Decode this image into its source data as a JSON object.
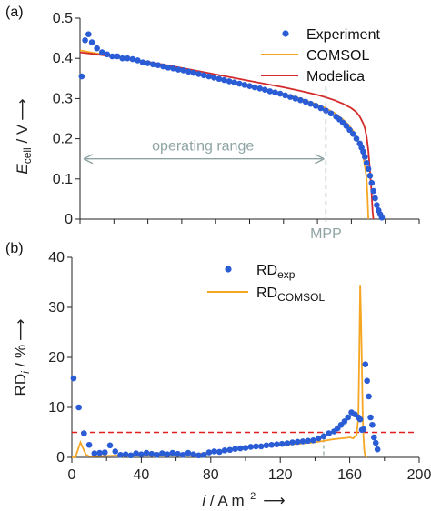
{
  "colors": {
    "experiment": "#2a5cd6",
    "comsol": "#f5a623",
    "modelica": "#d42a2a",
    "annotation": "#8fa3a3",
    "threshold": "#e02020",
    "axis": "#222222"
  },
  "chart_data": [
    {
      "panel_label": "(a)",
      "type": "scatter",
      "ylabel_main": "E",
      "ylabel_sub": "cell",
      "ylabel_rest": " / V",
      "ylabel_arrow": "⟶",
      "xlim": [
        0,
        200
      ],
      "ylim": [
        0,
        0.5
      ],
      "yticks": [
        "0",
        "0.1",
        "0.2",
        "0.3",
        "0.4",
        "0.5"
      ],
      "ytick_values": [
        0,
        0.1,
        0.2,
        0.3,
        0.4,
        0.5
      ],
      "xtick_values": [
        0,
        20,
        40,
        60,
        80,
        100,
        120,
        140,
        160,
        180,
        200
      ],
      "legend": [
        "Experiment",
        "COMSOL",
        "Modelica"
      ],
      "annotations": {
        "operating_range": "operating range",
        "mpp": "MPP",
        "mpp_x": 145,
        "mpp_y": 0.33
      },
      "series": [
        {
          "name": "Experiment",
          "style": "markers",
          "x": [
            1,
            3,
            5,
            7,
            10,
            13,
            16,
            19,
            22,
            25,
            28,
            31,
            34,
            37,
            40,
            43,
            46,
            49,
            52,
            55,
            58,
            61,
            64,
            67,
            70,
            73,
            76,
            79,
            82,
            85,
            88,
            91,
            94,
            97,
            100,
            103,
            106,
            109,
            112,
            115,
            118,
            121,
            124,
            127,
            130,
            133,
            136,
            139,
            142,
            145,
            148,
            151,
            153,
            155,
            157,
            159,
            161,
            163,
            165,
            166,
            167,
            168,
            169,
            170,
            171,
            172,
            173,
            174,
            175,
            176,
            177,
            178
          ],
          "y": [
            0.355,
            0.445,
            0.46,
            0.44,
            0.425,
            0.415,
            0.41,
            0.405,
            0.405,
            0.4,
            0.4,
            0.398,
            0.395,
            0.39,
            0.388,
            0.385,
            0.383,
            0.38,
            0.377,
            0.375,
            0.372,
            0.37,
            0.367,
            0.364,
            0.361,
            0.358,
            0.355,
            0.352,
            0.349,
            0.346,
            0.343,
            0.34,
            0.337,
            0.334,
            0.331,
            0.328,
            0.325,
            0.322,
            0.318,
            0.315,
            0.312,
            0.308,
            0.304,
            0.3,
            0.296,
            0.292,
            0.287,
            0.282,
            0.276,
            0.27,
            0.263,
            0.255,
            0.248,
            0.24,
            0.232,
            0.222,
            0.212,
            0.2,
            0.188,
            0.178,
            0.168,
            0.155,
            0.14,
            0.125,
            0.108,
            0.09,
            0.07,
            0.052,
            0.035,
            0.022,
            0.012,
            0.004
          ]
        },
        {
          "name": "COMSOL",
          "style": "line",
          "x": [
            0,
            10,
            20,
            30,
            40,
            50,
            60,
            70,
            80,
            90,
            100,
            110,
            120,
            130,
            140,
            145,
            150,
            155,
            158,
            161,
            163,
            165,
            166,
            167,
            168,
            169,
            169.5,
            170
          ],
          "y": [
            0.42,
            0.412,
            0.405,
            0.397,
            0.388,
            0.38,
            0.371,
            0.362,
            0.352,
            0.342,
            0.333,
            0.323,
            0.312,
            0.3,
            0.285,
            0.276,
            0.264,
            0.248,
            0.236,
            0.22,
            0.205,
            0.185,
            0.172,
            0.155,
            0.132,
            0.1,
            0.06,
            0.0
          ]
        },
        {
          "name": "Modelica",
          "style": "line",
          "x": [
            0,
            10,
            20,
            30,
            40,
            50,
            60,
            70,
            80,
            90,
            100,
            110,
            120,
            130,
            140,
            145,
            150,
            155,
            160,
            163,
            165,
            167,
            168,
            169,
            170,
            171,
            172,
            172.5,
            173
          ],
          "y": [
            0.415,
            0.41,
            0.404,
            0.398,
            0.391,
            0.384,
            0.376,
            0.368,
            0.36,
            0.352,
            0.344,
            0.336,
            0.328,
            0.319,
            0.309,
            0.303,
            0.296,
            0.287,
            0.276,
            0.266,
            0.255,
            0.238,
            0.226,
            0.205,
            0.17,
            0.12,
            0.06,
            0.02,
            0.0
          ]
        }
      ]
    },
    {
      "panel_label": "(b)",
      "type": "scatter",
      "ylabel_main": "RD",
      "ylabel_sub": "i",
      "ylabel_rest": " / %",
      "ylabel_arrow": "⟶",
      "xlabel_main": "i",
      "xlabel_rest": " / A m",
      "xlabel_sup": "−2",
      "xlabel_arrow": "⟶",
      "xlim": [
        0,
        200
      ],
      "ylim": [
        0,
        40
      ],
      "xticks": [
        "0",
        "40",
        "80",
        "120",
        "160",
        "200"
      ],
      "xtick_values": [
        0,
        40,
        80,
        120,
        160,
        200
      ],
      "minor_xtick_values": [
        20,
        60,
        100,
        140,
        180
      ],
      "yticks": [
        "0",
        "10",
        "20",
        "30",
        "40"
      ],
      "ytick_values": [
        0,
        10,
        20,
        30,
        40
      ],
      "threshold": 5,
      "mpp_x": 145,
      "legend": [
        {
          "main": "RD",
          "sub": "exp"
        },
        {
          "main": "RD",
          "sub": "COMSOL"
        }
      ],
      "series": [
        {
          "name": "RD exp",
          "style": "markers",
          "x": [
            1,
            4,
            7,
            10,
            13,
            16,
            19,
            22,
            25,
            28,
            31,
            34,
            37,
            40,
            43,
            46,
            49,
            52,
            55,
            58,
            61,
            64,
            67,
            70,
            73,
            76,
            79,
            82,
            85,
            88,
            91,
            94,
            97,
            100,
            103,
            106,
            109,
            112,
            115,
            118,
            121,
            124,
            127,
            130,
            133,
            136,
            139,
            142,
            145,
            148,
            151,
            153,
            155,
            157,
            159,
            161,
            163,
            165,
            166,
            167,
            168,
            169,
            170,
            171,
            172,
            173,
            174,
            175,
            176
          ],
          "y": [
            15.8,
            10.0,
            4.8,
            2.5,
            0.8,
            0.9,
            1.0,
            2.4,
            1.2,
            0.5,
            0.6,
            0.4,
            0.8,
            0.6,
            0.9,
            0.7,
            0.5,
            0.8,
            0.6,
            0.9,
            0.7,
            0.5,
            0.9,
            0.6,
            0.4,
            0.5,
            1.0,
            1.2,
            1.1,
            1.4,
            1.5,
            1.7,
            1.8,
            1.9,
            2.1,
            2.2,
            2.2,
            2.4,
            2.5,
            2.6,
            2.7,
            2.8,
            3.0,
            3.1,
            3.2,
            3.3,
            3.4,
            3.8,
            4.2,
            4.8,
            5.2,
            5.8,
            6.5,
            7.2,
            8.0,
            9.0,
            8.6,
            8.0,
            7.6,
            5.5,
            5.6,
            18.6,
            15.3,
            12.2,
            8.0,
            6.5,
            4.0,
            2.9,
            1.6
          ]
        },
        {
          "name": "RD COMSOL",
          "style": "line",
          "x": [
            0,
            2,
            5,
            8,
            10,
            20,
            30,
            40,
            50,
            60,
            70,
            80,
            90,
            100,
            110,
            120,
            130,
            140,
            145,
            150,
            155,
            158,
            160,
            162,
            164,
            165,
            165.5,
            166,
            166.5,
            167,
            167.5,
            168,
            168.5,
            169,
            170
          ],
          "y": [
            0.0,
            0.0,
            3.0,
            0.6,
            0.2,
            0.3,
            0.4,
            0.4,
            0.5,
            0.5,
            0.6,
            1.0,
            1.5,
            1.9,
            2.2,
            2.5,
            2.7,
            3.0,
            3.3,
            3.6,
            3.8,
            3.9,
            4.0,
            3.8,
            4.5,
            8.0,
            20.0,
            34.5,
            28.0,
            18.0,
            8.0,
            3.5,
            1.0,
            0.3,
            0.0
          ]
        }
      ]
    }
  ]
}
